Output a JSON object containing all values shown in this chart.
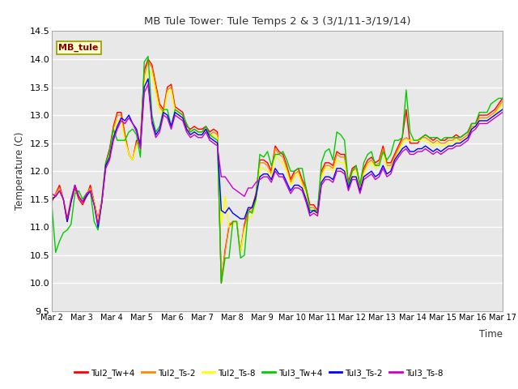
{
  "title": "MB Tule Tower: Tule Temps 2 & 3 (3/1/11-3/19/14)",
  "xlabel": "Time",
  "ylabel": "Temperature (C)",
  "ylim": [
    9.5,
    14.5
  ],
  "bg_color": "#e8e8e8",
  "fig_bg_color": "#ffffff",
  "grid_color": "#ffffff",
  "annotation_text": "MB_tule",
  "annotation_bg": "#ffffcc",
  "annotation_border": "#999900",
  "x_tick_labels": [
    "Mar 2",
    "Mar 3",
    "Mar 4",
    "Mar 5",
    "Mar 6",
    "Mar 7",
    "Mar 8",
    "Mar 9",
    "Mar 10",
    "Mar 11",
    "Mar 12",
    "Mar 13",
    "Mar 14",
    "Mar 15",
    "Mar 16",
    "Mar 17"
  ],
  "series": {
    "Tul2_Tw+4": {
      "color": "#ff0000",
      "data": [
        11.45,
        11.6,
        11.75,
        11.5,
        11.1,
        11.45,
        11.7,
        11.5,
        11.4,
        11.55,
        11.75,
        11.45,
        11.15,
        11.5,
        12.15,
        12.4,
        12.8,
        13.05,
        13.05,
        12.65,
        12.3,
        12.2,
        12.55,
        12.55,
        13.8,
        14.0,
        13.9,
        13.55,
        13.2,
        13.1,
        13.5,
        13.55,
        13.15,
        13.1,
        13.05,
        12.8,
        12.75,
        12.8,
        12.75,
        12.75,
        12.8,
        12.7,
        12.75,
        12.7,
        10.0,
        10.6,
        11.0,
        11.1,
        11.1,
        10.55,
        11.05,
        11.3,
        11.35,
        11.6,
        12.2,
        12.2,
        12.15,
        12.0,
        12.45,
        12.35,
        12.3,
        12.1,
        11.85,
        12.0,
        12.05,
        11.85,
        11.7,
        11.4,
        11.4,
        11.3,
        12.0,
        12.15,
        12.15,
        12.1,
        12.35,
        12.3,
        12.3,
        11.8,
        12.05,
        12.1,
        11.75,
        12.05,
        12.2,
        12.25,
        12.15,
        12.2,
        12.45,
        12.15,
        12.15,
        12.3,
        12.45,
        12.6,
        13.1,
        12.5,
        12.5,
        12.5,
        12.6,
        12.65,
        12.6,
        12.55,
        12.6,
        12.55,
        12.55,
        12.6,
        12.6,
        12.65,
        12.6,
        12.65,
        12.7,
        12.85,
        12.85,
        13.0,
        13.0,
        13.0,
        13.05,
        13.1,
        13.2,
        13.3
      ]
    },
    "Tul2_Ts-2": {
      "color": "#ff8800",
      "data": [
        11.5,
        11.6,
        11.7,
        11.5,
        11.15,
        11.5,
        11.75,
        11.55,
        11.45,
        11.6,
        11.7,
        11.45,
        11.1,
        11.5,
        12.1,
        12.35,
        12.75,
        13.0,
        13.0,
        12.6,
        12.3,
        12.2,
        12.5,
        12.5,
        13.7,
        13.95,
        13.85,
        13.5,
        13.15,
        13.05,
        13.45,
        13.5,
        13.1,
        13.05,
        13.0,
        12.75,
        12.7,
        12.75,
        12.7,
        12.7,
        12.75,
        12.65,
        12.7,
        12.65,
        10.05,
        10.55,
        11.05,
        11.1,
        11.1,
        10.55,
        11.0,
        11.25,
        11.3,
        11.55,
        12.15,
        12.15,
        12.1,
        11.95,
        12.4,
        12.3,
        12.25,
        12.05,
        11.8,
        11.95,
        12.0,
        11.8,
        11.65,
        11.35,
        11.35,
        11.25,
        11.95,
        12.1,
        12.1,
        12.05,
        12.3,
        12.25,
        12.25,
        11.75,
        12.0,
        12.05,
        11.7,
        12.0,
        12.15,
        12.2,
        12.1,
        12.15,
        12.4,
        12.1,
        12.1,
        12.25,
        12.4,
        12.55,
        12.6,
        12.55,
        12.55,
        12.55,
        12.6,
        12.6,
        12.55,
        12.5,
        12.55,
        12.5,
        12.5,
        12.55,
        12.55,
        12.6,
        12.55,
        12.6,
        12.65,
        12.8,
        12.8,
        12.95,
        12.95,
        12.95,
        13.0,
        13.05,
        13.15,
        13.25
      ]
    },
    "Tul2_Ts-8": {
      "color": "#ffff00",
      "data": [
        11.55,
        11.55,
        11.65,
        11.5,
        11.2,
        11.5,
        11.75,
        11.55,
        11.5,
        11.6,
        11.65,
        11.45,
        11.1,
        11.5,
        12.05,
        12.3,
        12.7,
        12.9,
        12.9,
        12.55,
        12.3,
        12.2,
        12.45,
        12.45,
        13.55,
        13.8,
        13.75,
        13.4,
        13.05,
        13.0,
        13.4,
        13.45,
        13.05,
        13.0,
        12.95,
        12.7,
        12.65,
        12.7,
        12.65,
        12.65,
        12.7,
        12.6,
        12.65,
        12.6,
        11.05,
        11.55,
        11.0,
        11.05,
        11.1,
        10.55,
        10.95,
        11.15,
        11.2,
        11.45,
        12.05,
        12.05,
        12.0,
        11.9,
        12.3,
        12.2,
        12.15,
        12.0,
        11.75,
        11.9,
        11.95,
        11.75,
        11.6,
        11.3,
        11.3,
        11.2,
        11.9,
        12.05,
        12.05,
        12.0,
        12.2,
        12.15,
        12.15,
        11.7,
        11.95,
        12.0,
        11.65,
        11.95,
        12.1,
        12.15,
        12.05,
        12.1,
        12.35,
        12.05,
        12.05,
        12.2,
        12.35,
        12.5,
        12.55,
        12.55,
        12.55,
        12.55,
        12.55,
        12.55,
        12.5,
        12.45,
        12.5,
        12.45,
        12.45,
        12.5,
        12.5,
        12.55,
        12.5,
        12.55,
        12.6,
        12.75,
        12.75,
        12.9,
        12.9,
        12.9,
        12.95,
        13.0,
        13.1,
        13.2
      ]
    },
    "Tul3_Tw+4": {
      "color": "#00cc00",
      "data": [
        11.4,
        10.55,
        10.75,
        10.9,
        10.95,
        11.05,
        11.6,
        11.65,
        11.5,
        11.6,
        11.65,
        11.1,
        10.95,
        11.45,
        12.15,
        12.35,
        12.75,
        12.55,
        12.55,
        12.55,
        12.7,
        12.75,
        12.65,
        12.25,
        13.95,
        14.05,
        13.0,
        12.7,
        12.8,
        13.1,
        13.1,
        12.8,
        13.1,
        13.05,
        13.0,
        12.85,
        12.7,
        12.75,
        12.7,
        12.7,
        12.8,
        12.65,
        12.6,
        12.55,
        10.0,
        10.45,
        10.45,
        11.1,
        11.1,
        10.45,
        10.5,
        11.3,
        11.25,
        11.5,
        12.3,
        12.25,
        12.35,
        12.1,
        12.3,
        12.3,
        12.35,
        12.2,
        12.0,
        12.0,
        12.05,
        12.05,
        11.7,
        11.3,
        11.3,
        11.3,
        12.15,
        12.35,
        12.4,
        12.2,
        12.7,
        12.65,
        12.55,
        11.75,
        12.0,
        12.1,
        11.75,
        12.15,
        12.3,
        12.35,
        12.1,
        12.1,
        12.35,
        12.2,
        12.3,
        12.55,
        12.55,
        12.6,
        13.45,
        12.7,
        12.55,
        12.55,
        12.6,
        12.65,
        12.6,
        12.6,
        12.6,
        12.55,
        12.6,
        12.6,
        12.6,
        12.6,
        12.6,
        12.65,
        12.7,
        12.85,
        12.85,
        13.05,
        13.05,
        13.05,
        13.2,
        13.25,
        13.3,
        13.3
      ]
    },
    "Tul3_Ts-2": {
      "color": "#0000ff",
      "data": [
        11.5,
        11.55,
        11.65,
        11.5,
        11.1,
        11.45,
        11.75,
        11.55,
        11.45,
        11.55,
        11.65,
        11.4,
        11.0,
        11.45,
        12.1,
        12.25,
        12.6,
        12.8,
        12.95,
        12.9,
        13.0,
        12.85,
        12.75,
        12.45,
        13.5,
        13.65,
        12.9,
        12.65,
        12.75,
        13.05,
        13.0,
        12.8,
        13.05,
        13.0,
        12.95,
        12.75,
        12.65,
        12.7,
        12.65,
        12.65,
        12.75,
        12.6,
        12.55,
        12.5,
        11.3,
        11.25,
        11.35,
        11.25,
        11.2,
        11.15,
        11.15,
        11.35,
        11.35,
        11.55,
        11.9,
        11.95,
        11.95,
        11.85,
        12.05,
        11.95,
        11.95,
        11.8,
        11.65,
        11.75,
        11.75,
        11.7,
        11.5,
        11.25,
        11.3,
        11.25,
        11.8,
        11.9,
        11.9,
        11.85,
        12.05,
        12.05,
        12.0,
        11.7,
        11.9,
        11.9,
        11.65,
        11.9,
        11.95,
        12.0,
        11.9,
        11.95,
        12.1,
        11.95,
        12.0,
        12.2,
        12.3,
        12.4,
        12.45,
        12.35,
        12.35,
        12.4,
        12.4,
        12.45,
        12.4,
        12.35,
        12.4,
        12.35,
        12.4,
        12.45,
        12.45,
        12.5,
        12.5,
        12.55,
        12.6,
        12.75,
        12.8,
        12.9,
        12.9,
        12.9,
        12.95,
        13.0,
        13.05,
        13.1
      ]
    },
    "Tul3_Ts-8": {
      "color": "#cc00cc",
      "data": [
        11.6,
        11.55,
        11.65,
        11.5,
        11.15,
        11.5,
        11.75,
        11.55,
        11.45,
        11.6,
        11.65,
        11.4,
        11.05,
        11.45,
        12.05,
        12.2,
        12.55,
        12.75,
        12.9,
        12.85,
        12.95,
        12.85,
        12.7,
        12.4,
        13.4,
        13.55,
        12.85,
        12.6,
        12.7,
        13.0,
        12.95,
        12.75,
        13.0,
        12.95,
        12.9,
        12.7,
        12.6,
        12.65,
        12.6,
        12.6,
        12.7,
        12.55,
        12.5,
        12.45,
        11.9,
        11.9,
        11.8,
        11.7,
        11.65,
        11.6,
        11.55,
        11.7,
        11.7,
        11.8,
        11.85,
        11.9,
        11.9,
        11.8,
        12.0,
        11.9,
        11.9,
        11.75,
        11.6,
        11.7,
        11.7,
        11.65,
        11.45,
        11.2,
        11.25,
        11.2,
        11.75,
        11.85,
        11.85,
        11.8,
        12.0,
        12.0,
        11.95,
        11.65,
        11.85,
        11.85,
        11.6,
        11.85,
        11.9,
        11.95,
        11.85,
        11.9,
        12.05,
        11.9,
        11.95,
        12.15,
        12.25,
        12.35,
        12.4,
        12.3,
        12.3,
        12.35,
        12.35,
        12.4,
        12.35,
        12.3,
        12.35,
        12.3,
        12.35,
        12.4,
        12.4,
        12.45,
        12.45,
        12.5,
        12.55,
        12.7,
        12.75,
        12.85,
        12.85,
        12.85,
        12.9,
        12.95,
        13.0,
        13.05
      ]
    }
  },
  "legend": [
    {
      "label": "Tul2_Tw+4",
      "color": "#ff0000"
    },
    {
      "label": "Tul2_Ts-2",
      "color": "#ff8800"
    },
    {
      "label": "Tul2_Ts-8",
      "color": "#ffff00"
    },
    {
      "label": "Tul3_Tw+4",
      "color": "#00cc00"
    },
    {
      "label": "Tul3_Ts-2",
      "color": "#0000ff"
    },
    {
      "label": "Tul3_Ts-8",
      "color": "#cc00cc"
    }
  ]
}
